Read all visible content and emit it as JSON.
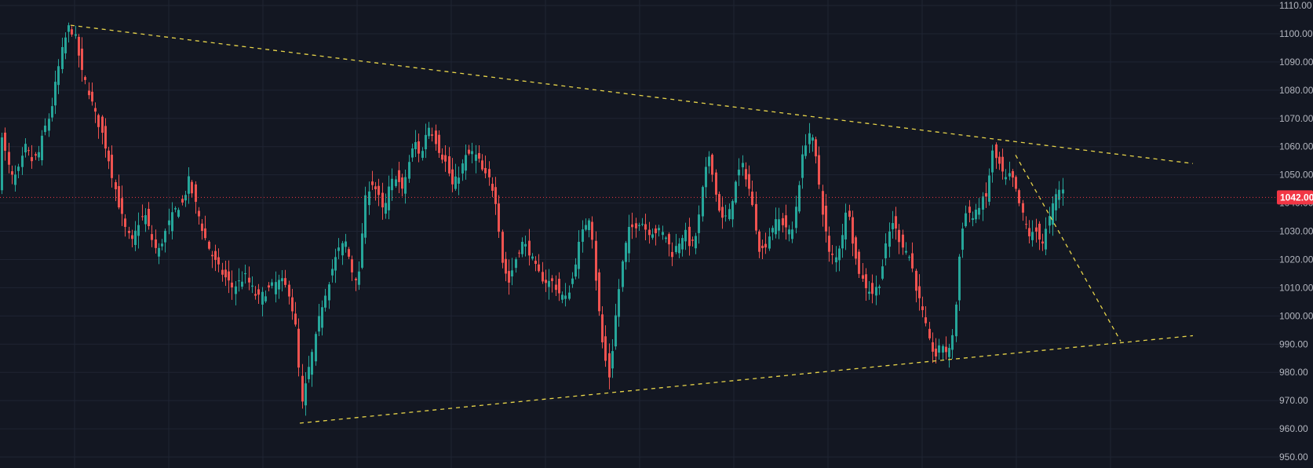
{
  "chart_data": {
    "type": "candlestick",
    "ylim": [
      945,
      1112
    ],
    "y_ticks": [
      "1110.00",
      "1100.00",
      "1090.00",
      "1080.00",
      "1070.00",
      "1060.00",
      "1050.00",
      "1040.00",
      "1030.00",
      "1020.00",
      "1010.00",
      "1000.00",
      "990.00",
      "980.00",
      "970.00",
      "960.00",
      "950.00"
    ],
    "last_price": "1042.00",
    "grid": true,
    "colors": {
      "background": "#131722",
      "grid": "#1f2433",
      "up": "#26a69a",
      "down": "#ef5350",
      "trendline": "#e7d44a",
      "price_line": "#f23645",
      "axis_text": "#b2b5be"
    },
    "trendlines": [
      {
        "from": [
          90,
          1103
        ],
        "to": [
          1520,
          1054
        ]
      },
      {
        "from": [
          382,
          962
        ],
        "to": [
          1520,
          993
        ]
      },
      {
        "from": [
          1294,
          1057
        ],
        "to": [
          1428,
          991
        ]
      }
    ],
    "anchors": [
      [
        0,
        1068
      ],
      [
        8,
        1055
      ],
      [
        16,
        1048
      ],
      [
        24,
        1052
      ],
      [
        32,
        1060
      ],
      [
        40,
        1055
      ],
      [
        48,
        1057
      ],
      [
        56,
        1066
      ],
      [
        64,
        1072
      ],
      [
        72,
        1085
      ],
      [
        80,
        1096
      ],
      [
        88,
        1103
      ],
      [
        96,
        1098
      ],
      [
        104,
        1086
      ],
      [
        112,
        1080
      ],
      [
        120,
        1072
      ],
      [
        128,
        1066
      ],
      [
        136,
        1058
      ],
      [
        144,
        1048
      ],
      [
        152,
        1038
      ],
      [
        160,
        1030
      ],
      [
        168,
        1026
      ],
      [
        176,
        1033
      ],
      [
        184,
        1036
      ],
      [
        192,
        1028
      ],
      [
        200,
        1022
      ],
      [
        208,
        1028
      ],
      [
        216,
        1034
      ],
      [
        224,
        1038
      ],
      [
        232,
        1040
      ],
      [
        240,
        1048
      ],
      [
        248,
        1040
      ],
      [
        256,
        1032
      ],
      [
        264,
        1025
      ],
      [
        272,
        1020
      ],
      [
        280,
        1016
      ],
      [
        288,
        1013
      ],
      [
        296,
        1010
      ],
      [
        304,
        1012
      ],
      [
        312,
        1014
      ],
      [
        320,
        1010
      ],
      [
        328,
        1006
      ],
      [
        336,
        1008
      ],
      [
        344,
        1010
      ],
      [
        352,
        1012
      ],
      [
        360,
        1012
      ],
      [
        368,
        1008
      ],
      [
        376,
        996
      ],
      [
        384,
        968
      ],
      [
        392,
        980
      ],
      [
        400,
        990
      ],
      [
        408,
        1002
      ],
      [
        416,
        1010
      ],
      [
        424,
        1018
      ],
      [
        432,
        1024
      ],
      [
        440,
        1026
      ],
      [
        448,
        1016
      ],
      [
        456,
        1012
      ],
      [
        464,
        1040
      ],
      [
        472,
        1048
      ],
      [
        480,
        1044
      ],
      [
        488,
        1036
      ],
      [
        496,
        1046
      ],
      [
        504,
        1050
      ],
      [
        512,
        1044
      ],
      [
        520,
        1054
      ],
      [
        528,
        1062
      ],
      [
        536,
        1056
      ],
      [
        544,
        1068
      ],
      [
        552,
        1064
      ],
      [
        560,
        1058
      ],
      [
        568,
        1054
      ],
      [
        576,
        1046
      ],
      [
        584,
        1050
      ],
      [
        592,
        1056
      ],
      [
        600,
        1058
      ],
      [
        608,
        1056
      ],
      [
        616,
        1050
      ],
      [
        624,
        1048
      ],
      [
        632,
        1040
      ],
      [
        640,
        1018
      ],
      [
        648,
        1012
      ],
      [
        656,
        1020
      ],
      [
        664,
        1026
      ],
      [
        672,
        1024
      ],
      [
        680,
        1018
      ],
      [
        688,
        1014
      ],
      [
        696,
        1012
      ],
      [
        704,
        1012
      ],
      [
        712,
        1008
      ],
      [
        720,
        1006
      ],
      [
        728,
        1012
      ],
      [
        736,
        1024
      ],
      [
        744,
        1032
      ],
      [
        752,
        1036
      ],
      [
        760,
        1008
      ],
      [
        768,
        988
      ],
      [
        776,
        978
      ],
      [
        784,
        1000
      ],
      [
        792,
        1018
      ],
      [
        800,
        1030
      ],
      [
        808,
        1032
      ],
      [
        816,
        1034
      ],
      [
        824,
        1030
      ],
      [
        832,
        1030
      ],
      [
        840,
        1030
      ],
      [
        848,
        1028
      ],
      [
        856,
        1022
      ],
      [
        864,
        1026
      ],
      [
        872,
        1030
      ],
      [
        880,
        1024
      ],
      [
        888,
        1030
      ],
      [
        896,
        1048
      ],
      [
        904,
        1058
      ],
      [
        912,
        1042
      ],
      [
        920,
        1034
      ],
      [
        928,
        1036
      ],
      [
        936,
        1046
      ],
      [
        944,
        1054
      ],
      [
        952,
        1048
      ],
      [
        960,
        1036
      ],
      [
        968,
        1022
      ],
      [
        976,
        1026
      ],
      [
        984,
        1032
      ],
      [
        992,
        1034
      ],
      [
        1000,
        1032
      ],
      [
        1008,
        1028
      ],
      [
        1016,
        1044
      ],
      [
        1024,
        1060
      ],
      [
        1032,
        1066
      ],
      [
        1040,
        1054
      ],
      [
        1048,
        1036
      ],
      [
        1056,
        1022
      ],
      [
        1064,
        1020
      ],
      [
        1072,
        1028
      ],
      [
        1080,
        1040
      ],
      [
        1088,
        1022
      ],
      [
        1096,
        1014
      ],
      [
        1104,
        1010
      ],
      [
        1112,
        1008
      ],
      [
        1120,
        1012
      ],
      [
        1128,
        1024
      ],
      [
        1136,
        1034
      ],
      [
        1144,
        1028
      ],
      [
        1152,
        1024
      ],
      [
        1160,
        1020
      ],
      [
        1168,
        1008
      ],
      [
        1176,
        1000
      ],
      [
        1184,
        990
      ],
      [
        1192,
        986
      ],
      [
        1200,
        990
      ],
      [
        1208,
        986
      ],
      [
        1216,
        998
      ],
      [
        1224,
        1030
      ],
      [
        1232,
        1038
      ],
      [
        1240,
        1034
      ],
      [
        1248,
        1040
      ],
      [
        1256,
        1042
      ],
      [
        1264,
        1058
      ],
      [
        1272,
        1054
      ],
      [
        1280,
        1048
      ],
      [
        1288,
        1050
      ],
      [
        1296,
        1042
      ],
      [
        1304,
        1034
      ],
      [
        1312,
        1028
      ],
      [
        1320,
        1030
      ],
      [
        1328,
        1026
      ],
      [
        1336,
        1034
      ],
      [
        1344,
        1042
      ],
      [
        1352,
        1046
      ],
      [
        1356,
        1042
      ]
    ]
  }
}
